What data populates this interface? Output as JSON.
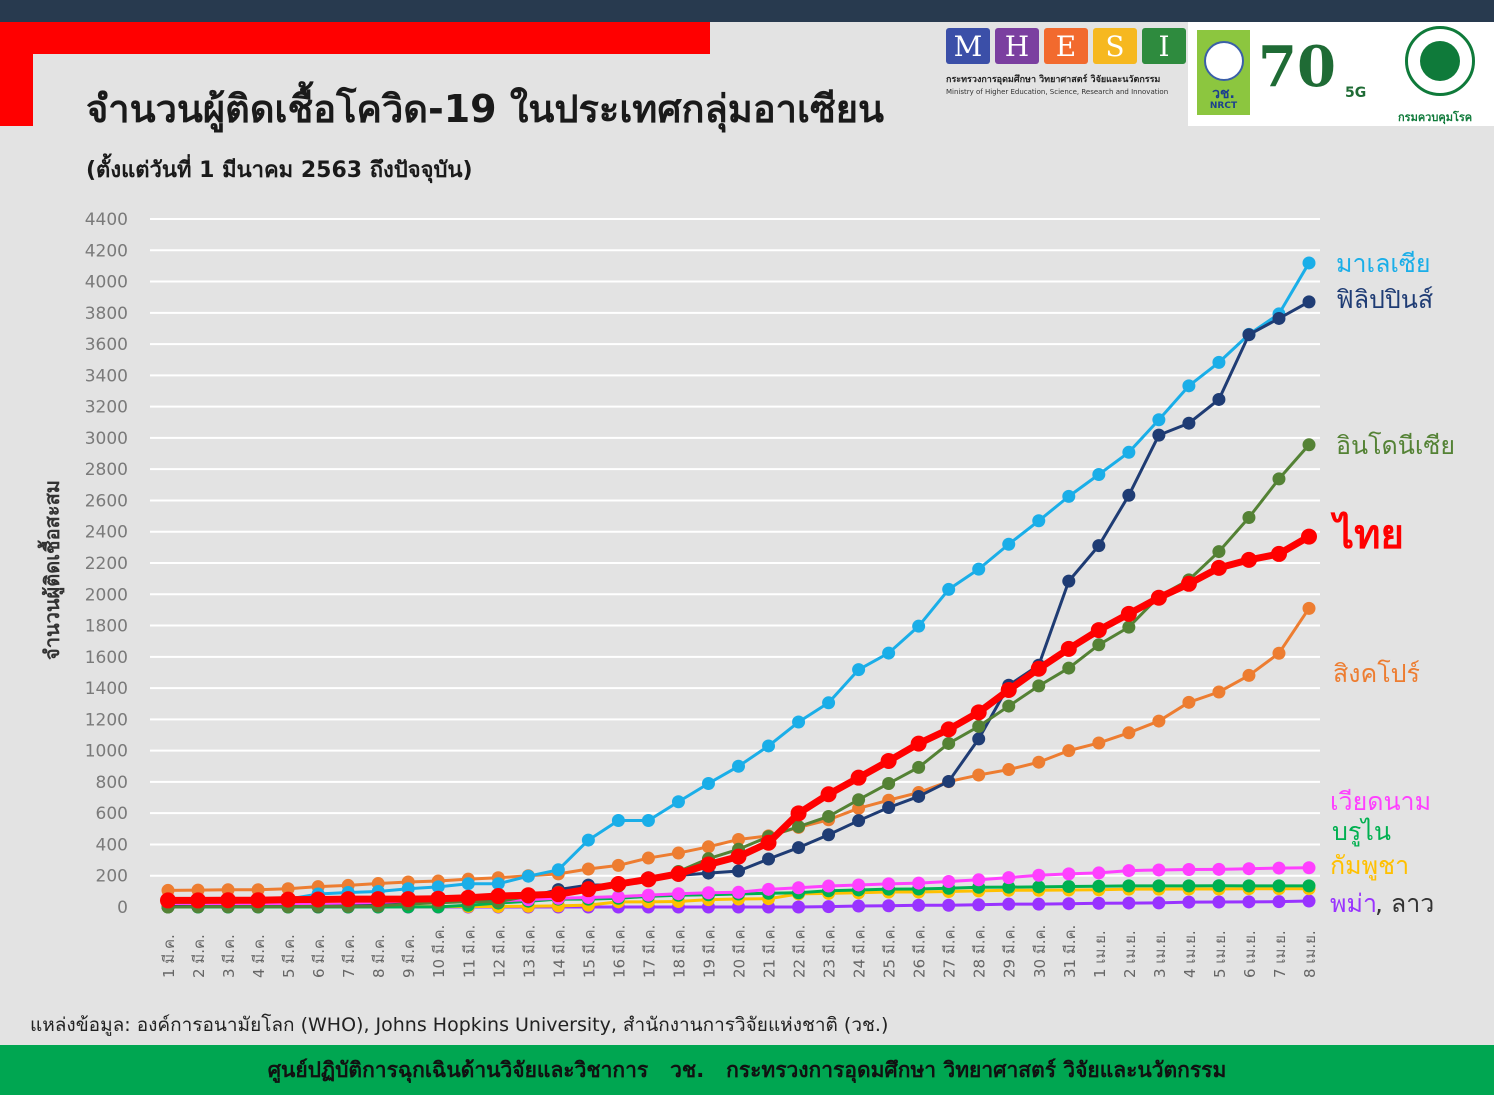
{
  "header": {
    "title": "จำนวนผู้ติดเชื้อโควิด-19 ในประเทศกลุ่มอาเซียน",
    "subtitle": "(ตั้งแต่วันที่ 1 มีนาคม 2563 ถึงปัจจุบัน)"
  },
  "logos": {
    "mhesi_letters": [
      "M",
      "H",
      "E",
      "S",
      "I"
    ],
    "mhesi_colors": [
      "#3b4fa8",
      "#7b3fa0",
      "#f26a2e",
      "#f6b820",
      "#2e8b3e"
    ],
    "mhesi_thai": "กระทรวงการอุดมศึกษา วิทยาศาสตร์ วิจัยและนวัตกรรม",
    "mhesi_english": "Ministry of Higher Education, Science, Research and Innovation",
    "nrct_thai": "วช.",
    "nrct_english": "NRCT",
    "anniversary": "70",
    "anniversary_suffix": "5G",
    "moph_thai": "กรมควบคุมโรค"
  },
  "source": "แหล่งข้อมูล: องค์การอนามัยโลก (WHO), Johns Hopkins University, สำนักงานการวิจัยแห่งชาติ (วช.)",
  "footer": "ศูนย์ปฏิบัติการฉุกเฉินด้านวิจัยและวิชาการ   วช.   กระทรวงการอุดมศึกษา วิทยาศาสตร์ วิจัยและนวัตกรรม",
  "chart_data": {
    "type": "line",
    "title": "จำนวนผู้ติดเชื้อโควิด-19 ในประเทศกลุ่มอาเซียน",
    "subtitle": "(ตั้งแต่วันที่ 1 มีนาคม 2563 ถึงปัจจุบัน)",
    "xlabel": "",
    "ylabel": "จำนวนผู้ติดเชื้อสะสม",
    "ylim": [
      0,
      4400
    ],
    "yticks": [
      0,
      200,
      400,
      600,
      800,
      1000,
      1200,
      1400,
      1600,
      1800,
      2000,
      2200,
      2400,
      2600,
      2800,
      3000,
      3200,
      3400,
      3600,
      3800,
      4000,
      4200,
      4400
    ],
    "grid": true,
    "legend_position": "right, inline at line ends",
    "categories": [
      "1 มี.ค.",
      "2 มี.ค.",
      "3 มี.ค.",
      "4 มี.ค.",
      "5 มี.ค.",
      "6 มี.ค.",
      "7 มี.ค.",
      "8 มี.ค.",
      "9 มี.ค.",
      "10 มี.ค.",
      "11 มี.ค.",
      "12 มี.ค.",
      "13 มี.ค.",
      "14 มี.ค.",
      "15 มี.ค.",
      "16 มี.ค.",
      "17 มี.ค.",
      "18 มี.ค.",
      "19 มี.ค.",
      "20 มี.ค.",
      "21 มี.ค.",
      "22 มี.ค.",
      "23 มี.ค.",
      "24 มี.ค.",
      "25 มี.ค.",
      "26 มี.ค.",
      "27 มี.ค.",
      "28 มี.ค.",
      "29 มี.ค.",
      "30 มี.ค.",
      "31 มี.ค.",
      "1 เม.ย.",
      "2 เม.ย.",
      "3 เม.ย.",
      "4 เม.ย.",
      "5 เม.ย.",
      "6 เม.ย.",
      "7 เม.ย.",
      "8 เม.ย."
    ],
    "series": [
      {
        "name": "มาเลเซีย",
        "color": "#1aaee8",
        "width": 3,
        "values": [
          29,
          29,
          36,
          50,
          50,
          83,
          93,
          99,
          117,
          129,
          149,
          149,
          197,
          238,
          428,
          553,
          553,
          673,
          790,
          900,
          1030,
          1183,
          1306,
          1518,
          1624,
          1796,
          2031,
          2161,
          2320,
          2470,
          2626,
          2766,
          2908,
          3116,
          3333,
          3483,
          3662,
          3793,
          4119
        ]
      },
      {
        "name": "ฟิลิปปินส์",
        "color": "#1f3c74",
        "width": 3,
        "values": [
          3,
          3,
          3,
          3,
          3,
          3,
          6,
          10,
          20,
          33,
          49,
          52,
          64,
          111,
          140,
          142,
          187,
          202,
          217,
          230,
          307,
          380,
          462,
          552,
          636,
          707,
          803,
          1075,
          1418,
          1546,
          2084,
          2311,
          2633,
          3018,
          3094,
          3246,
          3660,
          3764,
          3870
        ]
      },
      {
        "name": "อินโดนีเซีย",
        "color": "#548235",
        "width": 3,
        "values": [
          0,
          2,
          2,
          2,
          2,
          4,
          4,
          6,
          19,
          27,
          34,
          34,
          69,
          96,
          117,
          134,
          172,
          227,
          309,
          369,
          450,
          514,
          579,
          686,
          790,
          893,
          1046,
          1155,
          1285,
          1414,
          1528,
          1677,
          1790,
          1986,
          2092,
          2273,
          2491,
          2738,
          2956
        ]
      },
      {
        "name": "ไทย",
        "color": "#ff0000",
        "width": 7,
        "values": [
          42,
          42,
          43,
          43,
          47,
          48,
          50,
          50,
          50,
          53,
          59,
          70,
          75,
          82,
          114,
          147,
          177,
          212,
          272,
          322,
          411,
          599,
          721,
          827,
          934,
          1045,
          1136,
          1245,
          1388,
          1524,
          1651,
          1771,
          1875,
          1978,
          2067,
          2169,
          2220,
          2258,
          2369
        ]
      },
      {
        "name": "สิงคโปร์",
        "color": "#ed7d31",
        "width": 3,
        "values": [
          106,
          108,
          110,
          110,
          117,
          130,
          138,
          150,
          160,
          166,
          178,
          187,
          200,
          212,
          243,
          266,
          313,
          345,
          385,
          432,
          455,
          509,
          558,
          631,
          683,
          732,
          802,
          844,
          879,
          926,
          1000,
          1049,
          1114,
          1189,
          1309,
          1375,
          1481,
          1623,
          1910
        ]
      },
      {
        "name": "เวียดนาม",
        "color": "#ff40ff",
        "width": 3,
        "values": [
          16,
          16,
          16,
          16,
          16,
          16,
          18,
          21,
          30,
          31,
          38,
          39,
          47,
          56,
          61,
          66,
          76,
          85,
          91,
          94,
          113,
          123,
          134,
          141,
          148,
          153,
          163,
          174,
          188,
          203,
          212,
          218,
          233,
          237,
          240,
          241,
          245,
          249,
          251
        ]
      },
      {
        "name": "บรูไน",
        "color": "#00b050",
        "width": 3,
        "values": [
          0,
          0,
          0,
          0,
          0,
          0,
          0,
          0,
          1,
          1,
          11,
          25,
          37,
          50,
          50,
          56,
          68,
          75,
          78,
          83,
          88,
          91,
          104,
          109,
          114,
          115,
          120,
          126,
          127,
          129,
          131,
          133,
          135,
          135,
          135,
          136,
          135,
          135,
          135
        ]
      },
      {
        "name": "กัมพูชา",
        "color": "#ffc000",
        "width": 3,
        "values": [
          1,
          1,
          1,
          1,
          1,
          1,
          2,
          2,
          2,
          2,
          3,
          3,
          5,
          7,
          12,
          33,
          33,
          35,
          47,
          51,
          53,
          84,
          87,
          91,
          96,
          96,
          99,
          103,
          107,
          107,
          109,
          110,
          114,
          114,
          115,
          115,
          117,
          117,
          117
        ]
      },
      {
        "name": "พม่า, ลาว",
        "color": "#9933ff",
        "width": 3,
        "values": [
          0,
          0,
          0,
          0,
          0,
          0,
          0,
          0,
          0,
          0,
          0,
          0,
          0,
          0,
          0,
          0,
          0,
          0,
          0,
          0,
          0,
          0,
          2,
          6,
          8,
          11,
          11,
          14,
          18,
          18,
          21,
          24,
          25,
          26,
          31,
          32,
          33,
          34,
          38
        ]
      }
    ],
    "legend": [
      {
        "label": "มาเลเซีย",
        "color": "#1aaee8"
      },
      {
        "label": "ฟิลิปปินส์",
        "color": "#1f3c74"
      },
      {
        "label": "อินโดนีเซีย",
        "color": "#548235"
      },
      {
        "label": "ไทย",
        "color": "#ff0000"
      },
      {
        "label": "สิงคโปร์",
        "color": "#ed7d31"
      },
      {
        "label": "เวียดนาม",
        "color": "#ff40ff"
      },
      {
        "label": "บรูไน",
        "color": "#00b050"
      },
      {
        "label": "กัมพูชา",
        "color": "#ffc000"
      },
      {
        "label": "พม่า",
        "color": "#9933ff"
      },
      {
        "label": ", ลาว",
        "color": "#333333"
      }
    ]
  }
}
